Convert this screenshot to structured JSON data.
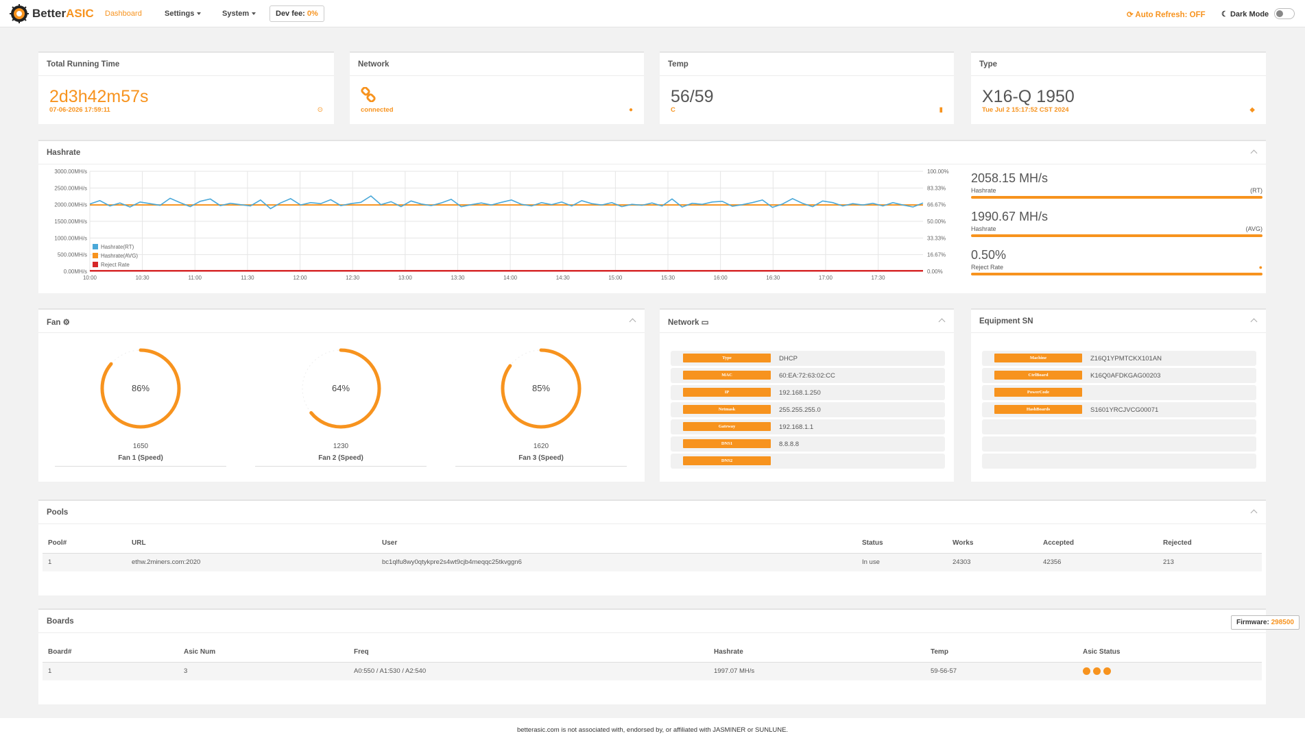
{
  "nav": {
    "brand_first": "Better",
    "brand_second": "ASIC",
    "dashboard": "Dashboard",
    "settings": "Settings",
    "system": "System",
    "dev_fee_label": "Dev fee:",
    "dev_fee_value": "0%",
    "auto_refresh": "Auto Refresh: OFF",
    "dark_mode": "Dark Mode"
  },
  "cards": {
    "running": {
      "title": "Total Running Time",
      "value": "2d3h42m57s",
      "sub": "07-06-2026 17:59:11",
      "icon": "clock-icon"
    },
    "network": {
      "title": "Network",
      "sub": "connected",
      "icon": "globe-icon"
    },
    "temp": {
      "title": "Temp",
      "value": "56/59",
      "sub": "C",
      "icon": "thermometer-icon"
    },
    "type": {
      "title": "Type",
      "value": "X16-Q 1950",
      "sub": "Tue Jul 2 15:17:52 CST 2024",
      "icon": "tags-icon"
    }
  },
  "hashrate": {
    "title": "Hashrate",
    "rt_value": "2058.15 MH/s",
    "rt_label": "Hashrate",
    "rt_tag": "(RT)",
    "avg_value": "1990.67 MH/s",
    "avg_label": "Hashrate",
    "avg_tag": "(AVG)",
    "reject_value": "0.50%",
    "reject_label": "Reject Rate"
  },
  "chart_data": {
    "type": "line",
    "y_left_ticks": [
      "3000.00MH/s",
      "2500.00MH/s",
      "2000.00MH/s",
      "1500.00MH/s",
      "1000.00MH/s",
      "500.00MH/s",
      "0.00MH/s"
    ],
    "y_right_ticks": [
      "100.00%",
      "83.33%",
      "66.67%",
      "50.00%",
      "33.33%",
      "16.67%",
      "0.00%"
    ],
    "x_ticks": [
      "10:00",
      "10:30",
      "11:00",
      "11:30",
      "12:00",
      "12:30",
      "13:00",
      "13:30",
      "14:00",
      "14:30",
      "15:00",
      "15:30",
      "16:00",
      "16:30",
      "17:00",
      "17:30"
    ],
    "ylim": [
      0,
      3000
    ],
    "y2lim": [
      0,
      100
    ],
    "grid": true,
    "legend": "bottom-left",
    "colors": {
      "rt": "#4aa8d8",
      "avg": "#f7931e",
      "reject": "#d62728"
    },
    "series": [
      {
        "name": "Hashrate(RT)",
        "values": [
          2020,
          2120,
          1960,
          2050,
          1930,
          2080,
          2030,
          1980,
          2190,
          2060,
          1940,
          2100,
          2170,
          1970,
          2040,
          2000,
          1960,
          2140,
          1880,
          2050,
          2180,
          1990,
          2060,
          2030,
          2150,
          1970,
          2030,
          2070,
          2260,
          2000,
          2090,
          1940,
          2110,
          2020,
          1970,
          2050,
          2160,
          1940,
          2000,
          2050,
          1990,
          2070,
          2140,
          2010,
          1960,
          2060,
          2000,
          2080,
          1960,
          2120,
          2030,
          1990,
          2060,
          1940,
          2010,
          1980,
          2050,
          1960,
          2170,
          1930,
          2040,
          2010,
          2080,
          2100,
          1950,
          2000,
          2060,
          2140,
          1920,
          2020,
          2180,
          2040,
          1940,
          2110,
          2060,
          1960,
          2030,
          1990,
          2040,
          1960,
          2060,
          1990,
          1930,
          2050
        ]
      },
      {
        "name": "Hashrate(AVG)",
        "values": [
          1990.67
        ]
      },
      {
        "name": "Reject Rate",
        "values": [
          0.5
        ]
      }
    ]
  },
  "fan": {
    "title": "Fan",
    "fans": [
      {
        "pct": "86%",
        "level": 0.86,
        "rpm": "1650",
        "name": "Fan 1 (Speed)"
      },
      {
        "pct": "64%",
        "level": 0.64,
        "rpm": "1230",
        "name": "Fan 2 (Speed)"
      },
      {
        "pct": "85%",
        "level": 0.85,
        "rpm": "1620",
        "name": "Fan 3 (Speed)"
      }
    ]
  },
  "network_info": {
    "title": "Network",
    "rows": [
      {
        "k": "Type",
        "v": "DHCP"
      },
      {
        "k": "MAC",
        "v": "60:EA:72:63:02:CC"
      },
      {
        "k": "IP",
        "v": "192.168.1.250"
      },
      {
        "k": "Netmask",
        "v": "255.255.255.0"
      },
      {
        "k": "Gateway",
        "v": "192.168.1.1"
      },
      {
        "k": "DNS1",
        "v": "8.8.8.8"
      },
      {
        "k": "DNS2",
        "v": ""
      }
    ]
  },
  "equipment": {
    "title": "Equipment SN",
    "rows": [
      {
        "k": "Machine",
        "v": "Z16Q1YPMTCKX101AN"
      },
      {
        "k": "CtrlBoard",
        "v": "K16Q0AFDKGAG00203"
      },
      {
        "k": "PowerCode",
        "v": ""
      },
      {
        "k": "HashBoards",
        "v": "S1601YRCJVCG00071"
      },
      {
        "k": "",
        "v": ""
      },
      {
        "k": "",
        "v": ""
      },
      {
        "k": "",
        "v": ""
      }
    ]
  },
  "pools": {
    "title": "Pools",
    "headers": [
      "Pool#",
      "URL",
      "User",
      "Status",
      "Works",
      "Accepted",
      "Rejected"
    ],
    "rows": [
      [
        "1",
        "ethw.2miners.com:2020",
        "bc1qlfu8wy0qtykpre2s4wt9cjb4meqqc25tkvggn6",
        "In use",
        "24303",
        "42356",
        "213"
      ]
    ]
  },
  "boards": {
    "title": "Boards",
    "firmware_label": "Firmware:",
    "firmware_value": "298500",
    "headers": [
      "Board#",
      "Asic Num",
      "Freq",
      "Hashrate",
      "Temp",
      "Asic Status"
    ],
    "rows": [
      [
        "1",
        "3",
        "A0:550 / A1:530 / A2:540",
        "1997.07 MH/s",
        "59-56-57",
        ""
      ]
    ]
  },
  "footer": "betterasic.com is not associated with, endorsed by, or affiliated with JASMINER or SUNLUNE."
}
